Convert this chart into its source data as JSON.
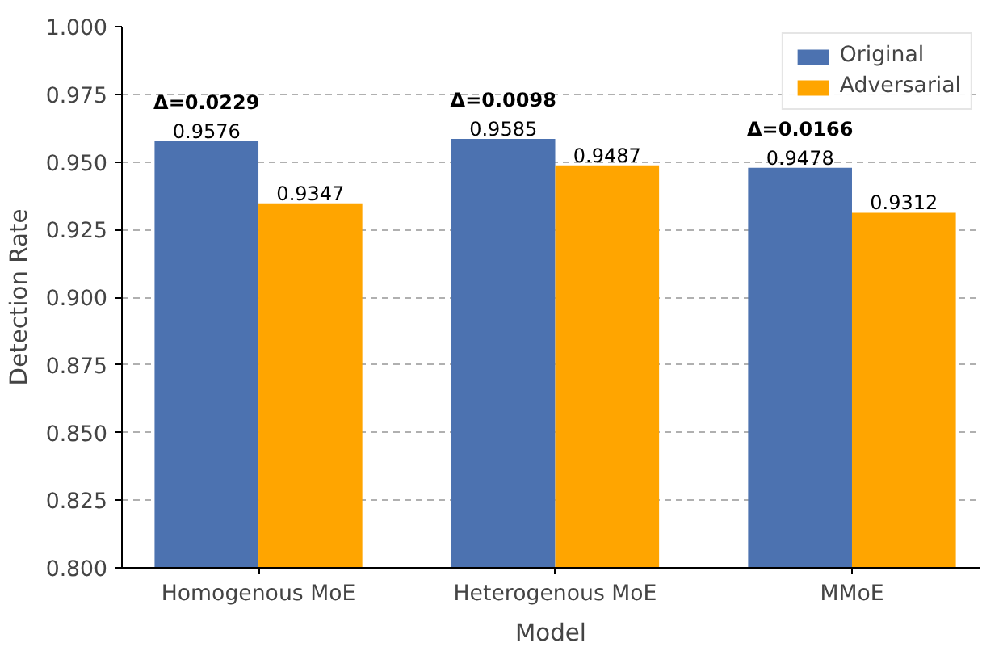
{
  "chart_data": {
    "type": "bar",
    "xlabel": "Model",
    "ylabel": "Detection Rate",
    "categories": [
      "Homogenous MoE",
      "Heterogenous MoE",
      "MMoE"
    ],
    "series": [
      {
        "name": "Original",
        "color": "#4c72b0",
        "values": [
          0.9576,
          0.9585,
          0.9478
        ]
      },
      {
        "name": "Adversarial",
        "color": "#ffa500",
        "values": [
          0.9347,
          0.9487,
          0.9312
        ]
      }
    ],
    "ylim": [
      0.8,
      1.0
    ],
    "yticks": [
      {
        "value": 0.8,
        "label": "0.800"
      },
      {
        "value": 0.825,
        "label": "0.825"
      },
      {
        "value": 0.85,
        "label": "0.850"
      },
      {
        "value": 0.875,
        "label": "0.875"
      },
      {
        "value": 0.9,
        "label": "0.900"
      },
      {
        "value": 0.925,
        "label": "0.925"
      },
      {
        "value": 0.95,
        "label": "0.950"
      },
      {
        "value": 0.975,
        "label": "0.975"
      },
      {
        "value": 1.0,
        "label": "1.000"
      }
    ],
    "annotations": [
      "Δ=0.0229",
      "Δ=0.0098",
      "Δ=0.0166"
    ],
    "data_labels": true,
    "grid": "y",
    "legend": "top right"
  }
}
